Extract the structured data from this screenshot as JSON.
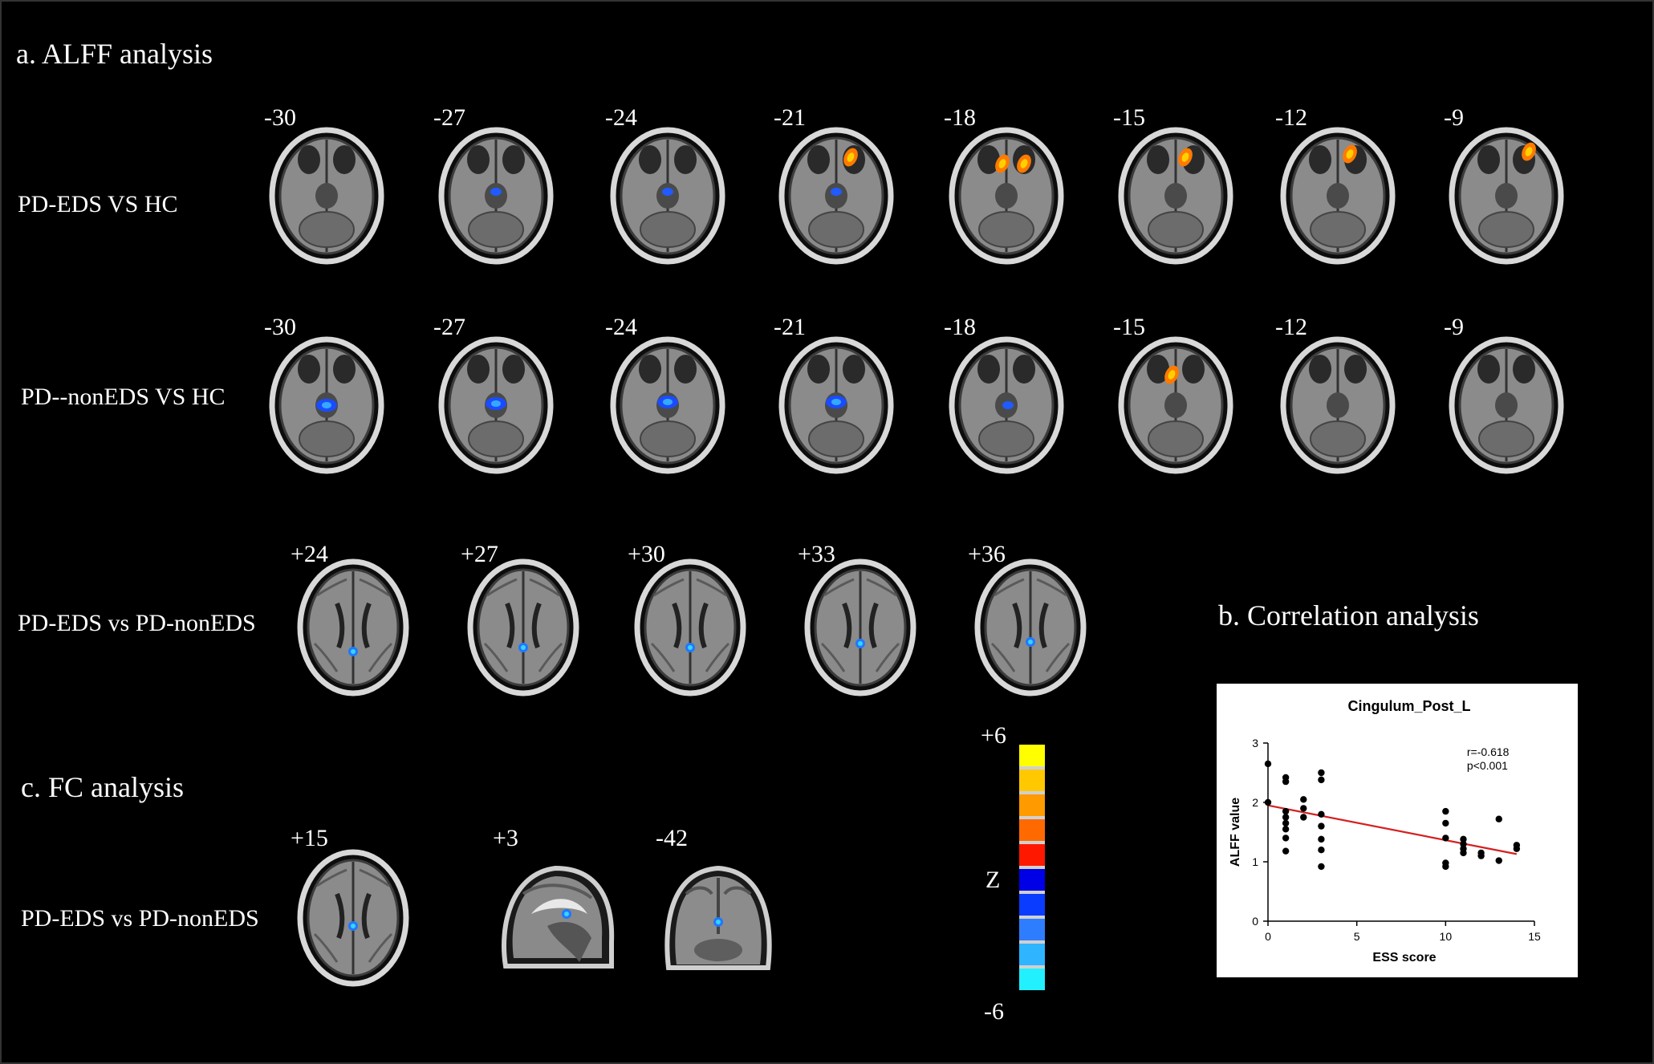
{
  "sections": {
    "a_title": "a. ALFF analysis",
    "b_title": "b. Correlation analysis",
    "c_title": "c. FC analysis"
  },
  "rows": {
    "r1": {
      "label": "PD-EDS VS HC",
      "slices": [
        "-30",
        "-27",
        "-24",
        "-21",
        "-18",
        "-15",
        "-12",
        "-9"
      ]
    },
    "r2": {
      "label": "PD--nonEDS VS HC",
      "slices": [
        "-30",
        "-27",
        "-24",
        "-21",
        "-18",
        "-15",
        "-12",
        "-9"
      ]
    },
    "r3": {
      "label": "PD-EDS vs PD-nonEDS",
      "slices": [
        "+24",
        "+27",
        "+30",
        "+33",
        "+36"
      ]
    },
    "r4": {
      "label": "PD-EDS vs PD-nonEDS",
      "slices": [
        "+15",
        "+3",
        "-42"
      ]
    }
  },
  "colorbar": {
    "top_label": "+6",
    "mid_label": "Z",
    "bottom_label": "-6",
    "colors": [
      "#ffff00",
      "#ffc800",
      "#ff9a00",
      "#ff6a00",
      "#ff1800",
      "#0000e6",
      "#0a3cff",
      "#2f7dff",
      "#2fb4ff",
      "#22f0ff"
    ]
  },
  "chart_data": {
    "type": "scatter",
    "title": "Cingulum_Post_L",
    "xlabel": "ESS score",
    "ylabel": "ALFF value",
    "xlim": [
      0,
      15
    ],
    "ylim": [
      0,
      3
    ],
    "xticks": [
      "0",
      "5",
      "10",
      "15"
    ],
    "yticks": [
      "0",
      "1",
      "2",
      "3"
    ],
    "annotation": [
      "r=-0.618",
      "p<0.001"
    ],
    "fit_line": [
      [
        0,
        1.95
      ],
      [
        14,
        1.13
      ]
    ],
    "points": [
      [
        0,
        2.65
      ],
      [
        0,
        2.0
      ],
      [
        1,
        2.42
      ],
      [
        1,
        2.35
      ],
      [
        1,
        1.85
      ],
      [
        1,
        1.75
      ],
      [
        1,
        1.65
      ],
      [
        1,
        1.55
      ],
      [
        1,
        1.4
      ],
      [
        1,
        1.18
      ],
      [
        2,
        2.05
      ],
      [
        2,
        1.9
      ],
      [
        2,
        1.75
      ],
      [
        3,
        2.5
      ],
      [
        3,
        2.38
      ],
      [
        3,
        1.8
      ],
      [
        3,
        1.6
      ],
      [
        3,
        1.38
      ],
      [
        3,
        1.2
      ],
      [
        3,
        0.92
      ],
      [
        10,
        1.85
      ],
      [
        10,
        1.65
      ],
      [
        10,
        1.4
      ],
      [
        10,
        0.98
      ],
      [
        10,
        0.92
      ],
      [
        11,
        1.38
      ],
      [
        11,
        1.3
      ],
      [
        11,
        1.22
      ],
      [
        11,
        1.15
      ],
      [
        12,
        1.15
      ],
      [
        12,
        1.1
      ],
      [
        13,
        1.72
      ],
      [
        13,
        1.02
      ],
      [
        14,
        1.28
      ],
      [
        14,
        1.22
      ]
    ],
    "point_color": "#000000",
    "line_color": "#d42020"
  }
}
